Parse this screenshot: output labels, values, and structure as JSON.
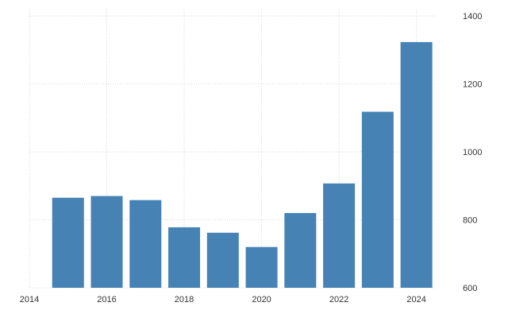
{
  "chart_data": {
    "type": "bar",
    "categories": [
      "2015",
      "2016",
      "2017",
      "2018",
      "2019",
      "2020",
      "2021",
      "2022",
      "2023",
      "2024"
    ],
    "values": [
      865,
      870,
      858,
      778,
      762,
      720,
      820,
      907,
      1118,
      1323
    ],
    "x_ticks": [
      "2014",
      "2016",
      "2018",
      "2020",
      "2022",
      "2024"
    ],
    "y_ticks": [
      "600",
      "800",
      "1000",
      "1200",
      "1400"
    ],
    "ylim": [
      600,
      1400
    ],
    "xlim": [
      2014,
      2024.5
    ],
    "y_axis_side": "right",
    "grid": true,
    "bar_color": "#4682b4",
    "title": "",
    "xlabel": "",
    "ylabel": ""
  }
}
